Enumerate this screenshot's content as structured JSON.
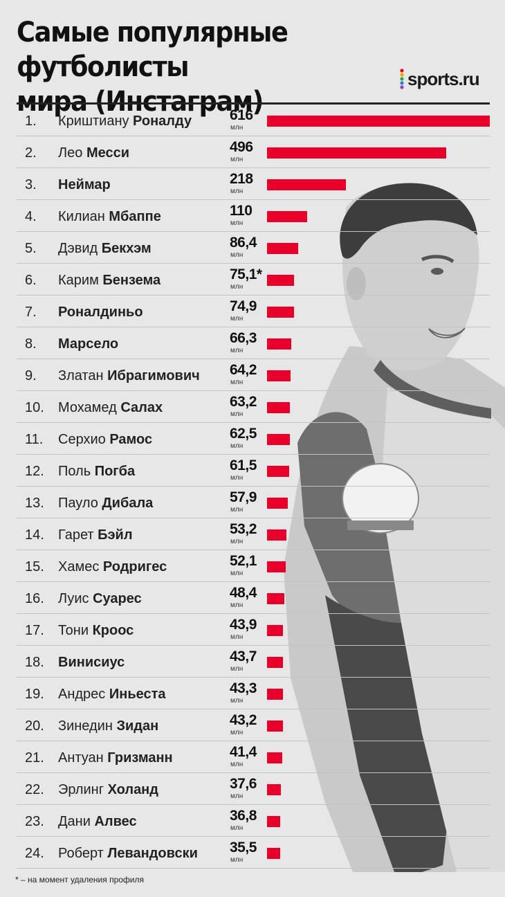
{
  "header": {
    "title_line1": "Самые популярные футболисты",
    "title_line2": "мира (Инстаграм)",
    "brand": "sports.ru"
  },
  "chart_data": {
    "type": "bar",
    "title": "Самые популярные футболисты мира (Инстаграм)",
    "unit_label": "млн",
    "max": 616,
    "rows": [
      {
        "rank": "1.",
        "first": "Криштиану ",
        "last": "Роналду",
        "value_label": "616",
        "value": 616
      },
      {
        "rank": "2.",
        "first": "Лео ",
        "last": "Месси",
        "value_label": "496",
        "value": 496
      },
      {
        "rank": "3.",
        "first": "",
        "last": "Неймар",
        "value_label": "218",
        "value": 218
      },
      {
        "rank": "4.",
        "first": "Килиан ",
        "last": "Мбаппе",
        "value_label": "110",
        "value": 110
      },
      {
        "rank": "5.",
        "first": "Дэвид ",
        "last": "Бекхэм",
        "value_label": "86,4",
        "value": 86.4
      },
      {
        "rank": "6.",
        "first": "Карим ",
        "last": "Бензема",
        "value_label": "75,1*",
        "value": 75.1
      },
      {
        "rank": "7.",
        "first": "",
        "last": "Роналдиньо",
        "value_label": "74,9",
        "value": 74.9
      },
      {
        "rank": "8.",
        "first": "",
        "last": "Марсело",
        "value_label": "66,3",
        "value": 66.3
      },
      {
        "rank": "9.",
        "first": "Златан ",
        "last": "Ибрагимович",
        "value_label": "64,2",
        "value": 64.2
      },
      {
        "rank": "10.",
        "first": "Мохамед ",
        "last": "Салах",
        "value_label": "63,2",
        "value": 63.2
      },
      {
        "rank": "11.",
        "first": "Серхио ",
        "last": "Рамос",
        "value_label": "62,5",
        "value": 62.5
      },
      {
        "rank": "12.",
        "first": "Поль ",
        "last": "Погба",
        "value_label": "61,5",
        "value": 61.5
      },
      {
        "rank": "13.",
        "first": "Пауло ",
        "last": "Дибала",
        "value_label": "57,9",
        "value": 57.9
      },
      {
        "rank": "14.",
        "first": "Гарет ",
        "last": "Бэйл",
        "value_label": "53,2",
        "value": 53.2
      },
      {
        "rank": "15.",
        "first": "Хамес ",
        "last": "Родригес",
        "value_label": "52,1",
        "value": 52.1
      },
      {
        "rank": "16.",
        "first": "Луис ",
        "last": "Суарес",
        "value_label": "48,4",
        "value": 48.4
      },
      {
        "rank": "17.",
        "first": "Тони ",
        "last": "Кроос",
        "value_label": "43,9",
        "value": 43.9
      },
      {
        "rank": "18.",
        "first": "",
        "last": "Винисиус",
        "value_label": "43,7",
        "value": 43.7
      },
      {
        "rank": "19.",
        "first": "Андрес ",
        "last": "Иньеста",
        "value_label": "43,3",
        "value": 43.3
      },
      {
        "rank": "20.",
        "first": "Зинедин ",
        "last": "Зидан",
        "value_label": "43,2",
        "value": 43.2
      },
      {
        "rank": "21.",
        "first": "Антуан ",
        "last": "Гризманн",
        "value_label": "41,4",
        "value": 41.4
      },
      {
        "rank": "22.",
        "first": "Эрлинг ",
        "last": "Холанд",
        "value_label": "37,6",
        "value": 37.6
      },
      {
        "rank": "23.",
        "first": "Дани ",
        "last": "Алвес",
        "value_label": "36,8",
        "value": 36.8
      },
      {
        "rank": "24.",
        "first": "Роберт ",
        "last": "Левандовски",
        "value_label": "35,5",
        "value": 35.5
      }
    ]
  },
  "footnote": "* – на момент удаления профиля",
  "colors": {
    "bar": "#e8002b",
    "background": "#e8e7e7",
    "brand_dots": [
      "#e8002b",
      "#f5a400",
      "#2ba84a",
      "#2a7de1",
      "#8e44ad"
    ]
  }
}
